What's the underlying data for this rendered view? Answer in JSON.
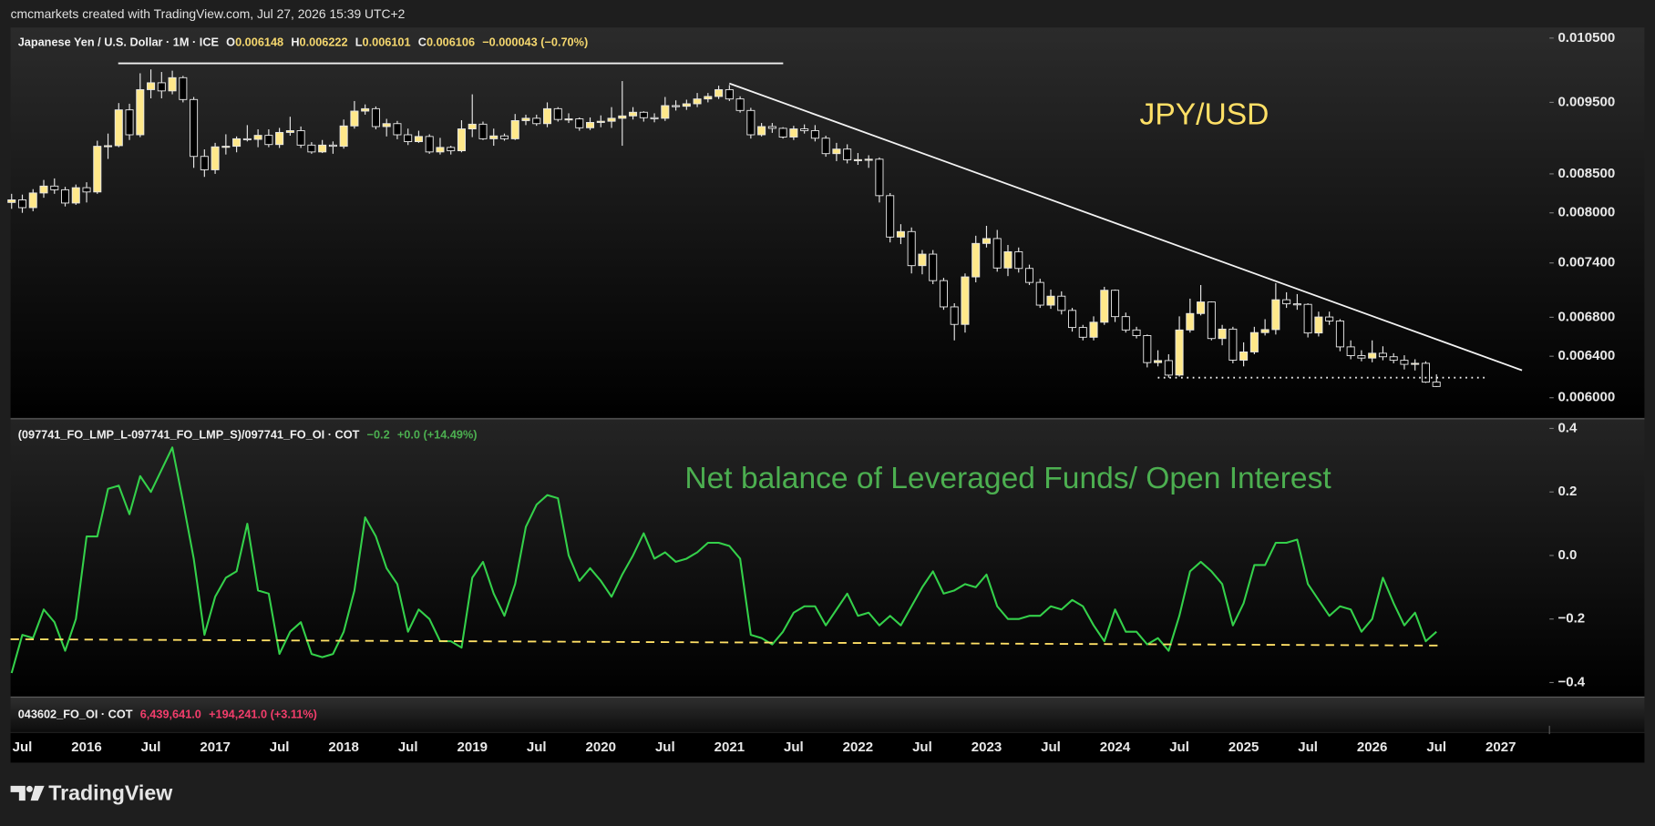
{
  "header": {
    "caption": "cmcmarkets created with TradingView.com, Jul 27, 2026 15:39 UTC+2"
  },
  "chart_data": [
    {
      "type": "candlestick",
      "title": "Japanese Yen / U.S. Dollar · 1M · ICE",
      "ohlc_legend": [
        {
          "label": "O",
          "value": "0.006148"
        },
        {
          "label": "H",
          "value": "0.006222"
        },
        {
          "label": "L",
          "value": "0.006101"
        },
        {
          "label": "C",
          "value": "0.006106"
        }
      ],
      "change_legend": "−0.000043 (−0.70%)",
      "annotation": "JPY/USD",
      "log_scale": true,
      "up_color": "#ffe88a",
      "down_color": "#000000",
      "wick_color": "#e6e6e6",
      "categories": [
        null,
        "Jul",
        null,
        null,
        null,
        null,
        null,
        "2016",
        null,
        null,
        null,
        null,
        null,
        "Jul",
        null,
        null,
        null,
        null,
        null,
        "2017",
        null,
        null,
        null,
        null,
        null,
        "Jul",
        null,
        null,
        null,
        null,
        null,
        "2018",
        null,
        null,
        null,
        null,
        null,
        "Jul",
        null,
        null,
        null,
        null,
        null,
        "2019",
        null,
        null,
        null,
        null,
        null,
        "Jul",
        null,
        null,
        null,
        null,
        null,
        "2020",
        null,
        null,
        null,
        null,
        null,
        "Jul",
        null,
        null,
        null,
        null,
        null,
        "2021",
        null,
        null,
        null,
        null,
        null,
        "Jul",
        null,
        null,
        null,
        null,
        null,
        "2022",
        null,
        null,
        null,
        null,
        null,
        "Jul",
        null,
        null,
        null,
        null,
        null,
        "2023",
        null,
        null,
        null,
        null,
        null,
        "Jul",
        null,
        null,
        null,
        null,
        null,
        "2024",
        null,
        null,
        null,
        null,
        null,
        "Jul",
        null,
        null,
        null,
        null,
        null,
        "2025",
        null,
        null,
        null,
        null,
        null,
        "Jul",
        null,
        null,
        null,
        null,
        null,
        "2026",
        null,
        null,
        null,
        null,
        null,
        "Jul",
        null,
        null,
        null,
        null,
        null,
        "2027",
        null,
        null,
        null,
        null
      ],
      "opens": [
        0.00813,
        0.008163,
        0.008065,
        0.008251,
        0.00834,
        0.008292,
        0.008123,
        0.008319,
        0.008264,
        0.008873,
        0.008881,
        0.00939,
        0.009033,
        0.00969,
        0.009794,
        0.009671,
        0.009872,
        0.009542,
        0.008734,
        0.008554,
        0.008865,
        0.008873,
        0.008977,
        0.008969,
        0.009025,
        0.008897,
        0.009066,
        0.009091,
        0.008889,
        0.008795,
        0.008889,
        0.008873,
        0.009158,
        0.009372,
        0.009407,
        0.009149,
        0.009191,
        0.009033,
        0.008937,
        0.009009,
        0.008795,
        0.008857,
        0.008811,
        0.009116,
        0.009183,
        0.008977,
        0.009017,
        0.008977,
        0.009234,
        0.009268,
        0.009191,
        0.009407,
        0.009251,
        0.009259,
        0.009132,
        0.009208,
        0.009225,
        0.009268,
        0.009302,
        0.009355,
        0.009276,
        0.009268,
        0.009452,
        0.009443,
        0.009479,
        0.009551,
        0.009588,
        0.00969,
        0.009551,
        0.009381,
        0.009033,
        0.009149,
        0.009124,
        0.009001,
        0.009116,
        0.009091,
        0.008985,
        0.008772,
        0.008834,
        0.008688,
        0.00869,
        0.008696,
        0.008217,
        0.007704,
        0.00777,
        0.007369,
        0.007502,
        0.007199,
        0.006911,
        0.006725,
        0.007241,
        0.007628,
        0.007686,
        0.007342,
        0.00753,
        0.007337,
        0.007179,
        0.00693,
        0.007027,
        0.006873,
        0.006693,
        0.006592,
        0.006748,
        0.007092,
        0.006807,
        0.006667,
        0.006609,
        0.006337,
        0.006357,
        0.006215,
        0.006667,
        0.00684,
        0.006964,
        0.006579,
        0.006676,
        0.006361,
        0.006443,
        0.00664,
        0.006671,
        0.006988,
        0.006944,
        0.006938,
        0.006636,
        0.006803,
        0.006761,
        0.006494,
        0.006406,
        0.006382,
        0.00643,
        0.006395,
        0.00636,
        0.00632,
        0.00633,
        0.006148,
        null,
        null,
        null,
        null,
        null,
        null,
        null,
        null,
        null,
        null
      ],
      "highs": [
        0.00824,
        0.00823,
        0.0083,
        0.00842,
        0.00844,
        0.00833,
        0.00836,
        0.00839,
        0.00895,
        0.00905,
        0.00949,
        0.00948,
        0.00994,
        0.01,
        0.00996,
        0.00998,
        0.0099,
        0.00958,
        0.00883,
        0.00892,
        0.00904,
        0.00901,
        0.00917,
        0.00911,
        0.00911,
        0.00913,
        0.00929,
        0.00915,
        0.00893,
        0.00896,
        0.00894,
        0.00925,
        0.00952,
        0.00947,
        0.00944,
        0.00926,
        0.00923,
        0.00912,
        0.00909,
        0.00904,
        0.00899,
        0.00888,
        0.00924,
        0.00962,
        0.00922,
        0.00912,
        0.00905,
        0.00933,
        0.00932,
        0.00932,
        0.0095,
        0.00943,
        0.00934,
        0.00928,
        0.00928,
        0.00931,
        0.00943,
        0.00982,
        0.00943,
        0.00937,
        0.00934,
        0.00958,
        0.00953,
        0.00954,
        0.00964,
        0.00964,
        0.00975,
        0.00976,
        0.00959,
        0.00942,
        0.0092,
        0.0092,
        0.00914,
        0.00916,
        0.00918,
        0.00917,
        0.00902,
        0.00892,
        0.0089,
        0.00878,
        0.00875,
        0.00872,
        0.00825,
        0.00786,
        0.00782,
        0.00755,
        0.00755,
        0.00723,
        0.00695,
        0.00728,
        0.00772,
        0.00784,
        0.00779,
        0.00761,
        0.00758,
        0.00738,
        0.00722,
        0.0071,
        0.00708,
        0.0069,
        0.00672,
        0.00681,
        0.00713,
        0.0071,
        0.00685,
        0.0067,
        0.00662,
        0.00646,
        0.00642,
        0.00681,
        0.007,
        0.00715,
        0.00697,
        0.00672,
        0.0067,
        0.00654,
        0.0067,
        0.00678,
        0.00717,
        0.00707,
        0.00705,
        0.00695,
        0.00686,
        0.00686,
        0.00678,
        0.00656,
        0.00646,
        0.00656,
        0.0065,
        0.00643,
        0.00641,
        0.00637,
        0.00635,
        0.006222,
        null,
        null,
        null,
        null,
        null,
        null,
        null,
        null,
        null,
        null
      ],
      "lows": [
        0.00805,
        0.008,
        0.00802,
        0.00819,
        0.00824,
        0.00808,
        0.0081,
        0.00813,
        0.00824,
        0.0087,
        0.00886,
        0.00896,
        0.009,
        0.00956,
        0.00956,
        0.00962,
        0.0095,
        0.00858,
        0.00846,
        0.0085,
        0.00876,
        0.00879,
        0.00894,
        0.00886,
        0.00886,
        0.00885,
        0.00902,
        0.00885,
        0.00877,
        0.00878,
        0.00877,
        0.00884,
        0.00912,
        0.00932,
        0.00911,
        0.00901,
        0.00897,
        0.00889,
        0.00892,
        0.00877,
        0.00876,
        0.00876,
        0.00879,
        0.009,
        0.00896,
        0.00888,
        0.00895,
        0.00896,
        0.00917,
        0.00916,
        0.00914,
        0.00922,
        0.0092,
        0.00909,
        0.0091,
        0.00914,
        0.00913,
        0.00888,
        0.00925,
        0.00922,
        0.00921,
        0.00923,
        0.00938,
        0.00939,
        0.00943,
        0.0095,
        0.00955,
        0.00952,
        0.00935,
        0.00898,
        0.00901,
        0.00906,
        0.00898,
        0.00896,
        0.00905,
        0.00894,
        0.00873,
        0.00867,
        0.00864,
        0.00862,
        0.00858,
        0.00813,
        0.00764,
        0.00762,
        0.00728,
        0.00727,
        0.00716,
        0.00688,
        0.00656,
        0.00664,
        0.00718,
        0.00758,
        0.0073,
        0.00725,
        0.00729,
        0.00715,
        0.0069,
        0.00689,
        0.00683,
        0.00665,
        0.00656,
        0.00656,
        0.00672,
        0.00675,
        0.00664,
        0.00658,
        0.00629,
        0.0063,
        0.00619,
        0.0062,
        0.00664,
        0.00682,
        0.00656,
        0.00651,
        0.00633,
        0.0063,
        0.00642,
        0.00661,
        0.00662,
        0.0069,
        0.00688,
        0.00659,
        0.0066,
        0.00672,
        0.00645,
        0.00637,
        0.00635,
        0.00634,
        0.00636,
        0.00633,
        0.00627,
        0.00626,
        0.00614,
        0.006101,
        null,
        null,
        null,
        null,
        null,
        null,
        null,
        null,
        null,
        null
      ],
      "closes": [
        0.008163,
        0.008065,
        0.008251,
        0.00834,
        0.008292,
        0.008123,
        0.008319,
        0.008264,
        0.008873,
        0.008881,
        0.00939,
        0.009033,
        0.00969,
        0.009794,
        0.009671,
        0.009872,
        0.009542,
        0.008734,
        0.008554,
        0.008865,
        0.008873,
        0.008977,
        0.008969,
        0.009025,
        0.008897,
        0.009066,
        0.009091,
        0.008889,
        0.008795,
        0.008889,
        0.008873,
        0.009158,
        0.009372,
        0.009407,
        0.009149,
        0.009191,
        0.009033,
        0.008937,
        0.009009,
        0.008795,
        0.008857,
        0.008811,
        0.009116,
        0.009183,
        0.008977,
        0.009017,
        0.008977,
        0.009234,
        0.009268,
        0.009191,
        0.009407,
        0.009251,
        0.009259,
        0.009132,
        0.009208,
        0.009225,
        0.009268,
        0.009302,
        0.009355,
        0.009276,
        0.009268,
        0.009452,
        0.009443,
        0.009479,
        0.009551,
        0.009588,
        0.00969,
        0.009551,
        0.009381,
        0.009033,
        0.009149,
        0.009124,
        0.009001,
        0.009116,
        0.009091,
        0.008985,
        0.008772,
        0.008834,
        0.008688,
        0.00869,
        0.008696,
        0.008217,
        0.007704,
        0.00777,
        0.007369,
        0.007502,
        0.007199,
        0.006911,
        0.006725,
        0.007241,
        0.007628,
        0.007686,
        0.007342,
        0.00753,
        0.007337,
        0.007179,
        0.00693,
        0.007027,
        0.006873,
        0.006693,
        0.006592,
        0.006748,
        0.007092,
        0.006807,
        0.006667,
        0.006609,
        0.006337,
        0.006357,
        0.006215,
        0.006667,
        0.00684,
        0.006964,
        0.006579,
        0.006676,
        0.006361,
        0.006443,
        0.00664,
        0.006671,
        0.006988,
        0.006944,
        0.006938,
        0.006636,
        0.006803,
        0.006761,
        0.006494,
        0.006406,
        0.006382,
        0.00643,
        0.006395,
        0.00636,
        0.00632,
        0.00633,
        0.006148,
        0.006106,
        null,
        null,
        null,
        null,
        null,
        null,
        null,
        null,
        null,
        null
      ],
      "ylim": [
        0.005816,
        0.010674
      ],
      "yticks": [
        {
          "value": 0.0105,
          "label": "0.010500"
        },
        {
          "value": 0.0095,
          "label": "0.009500"
        },
        {
          "value": 0.0085,
          "label": "0.008500"
        },
        {
          "value": 0.008,
          "label": "0.008000"
        },
        {
          "value": 0.0074,
          "label": "0.007400"
        },
        {
          "value": 0.0068,
          "label": "0.006800"
        },
        {
          "value": 0.0064,
          "label": "0.006400"
        },
        {
          "value": 0.006,
          "label": "0.006000"
        }
      ]
    },
    {
      "type": "line",
      "title": "(097741_FO_LMP_L-097741_FO_LMP_S)/097741_FO_OI · COT",
      "legend_values": [
        "−0.2",
        "+0.0 (+14.49%)"
      ],
      "annotation": "Net balance of Leveraged Funds/ Open Interest",
      "color": "#34d04a",
      "values": [
        -0.37,
        -0.25,
        -0.26,
        -0.17,
        -0.21,
        -0.3,
        -0.2,
        0.06,
        0.06,
        0.21,
        0.22,
        0.13,
        0.25,
        0.2,
        0.27,
        0.34,
        0.17,
        -0.01,
        -0.25,
        -0.13,
        -0.07,
        -0.05,
        0.1,
        -0.11,
        -0.12,
        -0.31,
        -0.24,
        -0.21,
        -0.31,
        -0.32,
        -0.31,
        -0.24,
        -0.11,
        0.12,
        0.06,
        -0.04,
        -0.09,
        -0.24,
        -0.17,
        -0.2,
        -0.27,
        -0.27,
        -0.29,
        -0.07,
        -0.02,
        -0.12,
        -0.19,
        -0.09,
        0.09,
        0.16,
        0.19,
        0.18,
        0.0,
        -0.08,
        -0.04,
        -0.08,
        -0.13,
        -0.06,
        0.0,
        0.07,
        -0.01,
        0.01,
        -0.02,
        -0.01,
        0.01,
        0.04,
        0.04,
        0.03,
        -0.01,
        -0.25,
        -0.26,
        -0.28,
        -0.24,
        -0.18,
        -0.16,
        -0.16,
        -0.22,
        -0.17,
        -0.12,
        -0.19,
        -0.18,
        -0.22,
        -0.19,
        -0.22,
        -0.16,
        -0.1,
        -0.05,
        -0.12,
        -0.11,
        -0.09,
        -0.1,
        -0.06,
        -0.16,
        -0.2,
        -0.2,
        -0.19,
        -0.19,
        -0.16,
        -0.17,
        -0.14,
        -0.16,
        -0.22,
        -0.27,
        -0.17,
        -0.24,
        -0.24,
        -0.28,
        -0.26,
        -0.3,
        -0.19,
        -0.05,
        -0.02,
        -0.05,
        -0.09,
        -0.22,
        -0.15,
        -0.03,
        -0.03,
        0.04,
        0.04,
        0.05,
        -0.09,
        -0.14,
        -0.19,
        -0.16,
        -0.17,
        -0.24,
        -0.2,
        -0.07,
        -0.15,
        -0.22,
        -0.18,
        -0.27,
        -0.24,
        null,
        null,
        null,
        null,
        null,
        null,
        null,
        null,
        null,
        null
      ],
      "ylim": [
        -0.443,
        0.427
      ],
      "yticks": [
        0.4,
        0.2,
        {
          "value": 0,
          "label": "0.0"
        },
        {
          "value": -0.2,
          "label": "−0.2"
        },
        {
          "value": -0.4,
          "label": "−0.4"
        }
      ]
    }
  ],
  "oi_pane": {
    "title": "043602_FO_OI · COT",
    "legend_values": [
      "6,439,641.0",
      "+194,241.0 (+3.11%)"
    ]
  },
  "footer": {
    "brand": "TradingView"
  }
}
